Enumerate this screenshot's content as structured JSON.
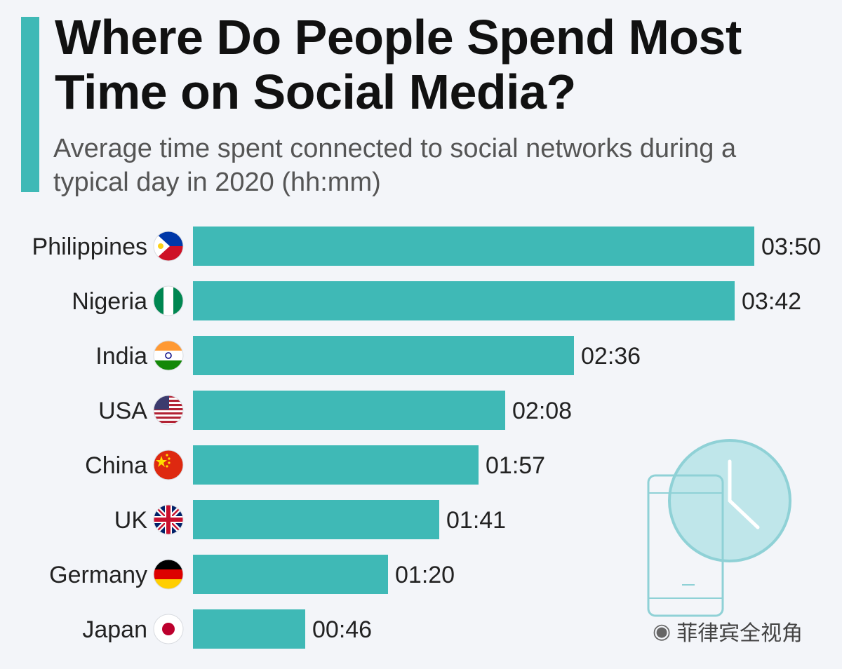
{
  "header": {
    "title": "Where Do People Spend Most Time on Social Media?",
    "subtitle": "Average time spent connected to social networks during a typical day in 2020 (hh:mm)"
  },
  "colors": {
    "accent": "#3fb9b6",
    "bar": "#3fb9b6",
    "background": "#f3f5f9"
  },
  "chart_data": {
    "type": "bar",
    "orientation": "horizontal",
    "title": "Where Do People Spend Most Time on Social Media?",
    "subtitle": "Average time spent connected to social networks during a typical day in 2020 (hh:mm)",
    "categories": [
      "Philippines",
      "Nigeria",
      "India",
      "USA",
      "China",
      "UK",
      "Germany",
      "Japan"
    ],
    "values_minutes": [
      230,
      222,
      156,
      128,
      117,
      101,
      80,
      46
    ],
    "labels": [
      "03:50",
      "03:42",
      "02:36",
      "02:08",
      "01:57",
      "01:41",
      "01:20",
      "00:46"
    ],
    "flags": [
      "philippines-flag-icon",
      "nigeria-flag-icon",
      "india-flag-icon",
      "usa-flag-icon",
      "china-flag-icon",
      "uk-flag-icon",
      "germany-flag-icon",
      "japan-flag-icon"
    ],
    "xlim": [
      0,
      230
    ],
    "grid": false,
    "legend": "none"
  },
  "watermark": {
    "text": "菲律宾全视角",
    "icon": "wechat-icon"
  },
  "decoration": {
    "icon": "phone-clock-icon"
  }
}
